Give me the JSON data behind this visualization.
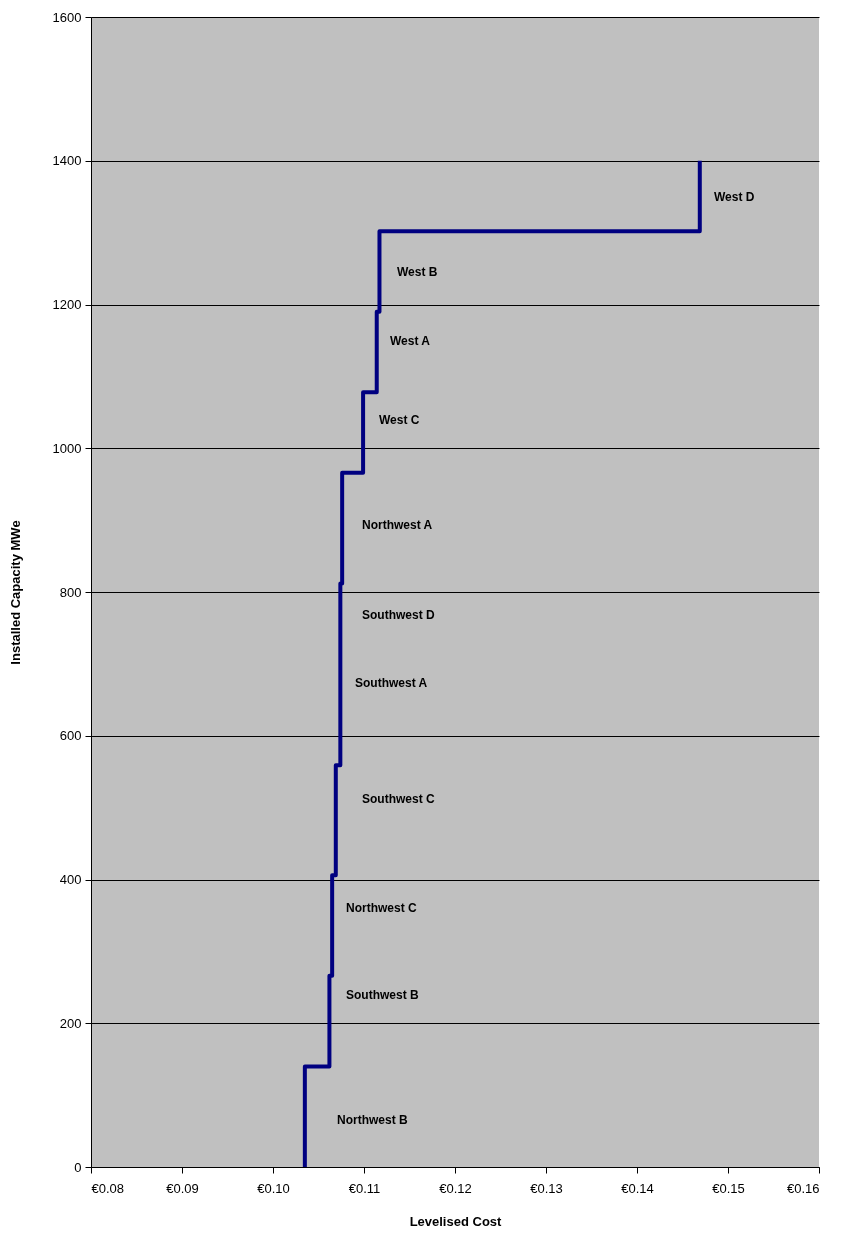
{
  "chart_data": {
    "type": "step",
    "xlabel": "Levelised Cost",
    "ylabel": "Installed Capacity MWe",
    "x": [
      0.1035,
      0.1035,
      0.1062,
      0.1065,
      0.1069,
      0.1074,
      0.1076,
      0.1099,
      0.1114,
      0.1117,
      0.1469
    ],
    "values": [
      0,
      140,
      266,
      406,
      559,
      812,
      966,
      1078,
      1190,
      1302,
      1400
    ],
    "color": "#000080",
    "xlim": [
      0.08,
      0.16
    ],
    "xticks": [
      {
        "value": 0.08,
        "label": "€0.08"
      },
      {
        "value": 0.09,
        "label": "€0.09"
      },
      {
        "value": 0.1,
        "label": "€0.10"
      },
      {
        "value": 0.11,
        "label": "€0.11"
      },
      {
        "value": 0.12,
        "label": "€0.12"
      },
      {
        "value": 0.13,
        "label": "€0.13"
      },
      {
        "value": 0.14,
        "label": "€0.14"
      },
      {
        "value": 0.15,
        "label": "€0.15"
      },
      {
        "value": 0.16,
        "label": "€0.16"
      }
    ],
    "ylim": [
      0,
      1600
    ],
    "yticks": [
      0,
      200,
      400,
      600,
      800,
      1000,
      1200,
      1400,
      1600
    ],
    "grid": "y",
    "annotations": [
      "West D",
      "West B",
      "West A",
      "West C",
      "Northwest A",
      "Southwest D",
      "Southwest A",
      "Southwest C",
      "Northwest C",
      "Southwest B",
      "Northwest B"
    ]
  }
}
